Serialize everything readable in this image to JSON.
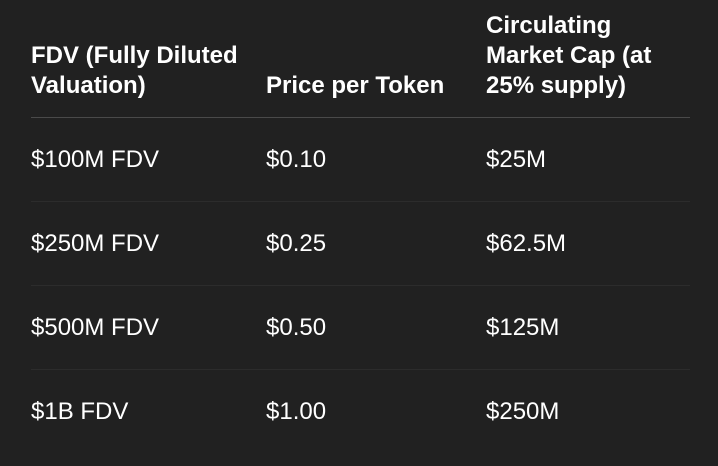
{
  "table": {
    "headers": [
      "FDV (Fully Diluted Valuation)",
      "Price per Token",
      "Circulating Market Cap (at 25% supply)"
    ],
    "rows": [
      [
        "$100M FDV",
        "$0.10",
        "$25M"
      ],
      [
        "$250M FDV",
        "$0.25",
        "$62.5M"
      ],
      [
        "$500M FDV",
        "$0.50",
        "$125M"
      ],
      [
        "$1B FDV",
        "$1.00",
        "$250M"
      ]
    ]
  }
}
